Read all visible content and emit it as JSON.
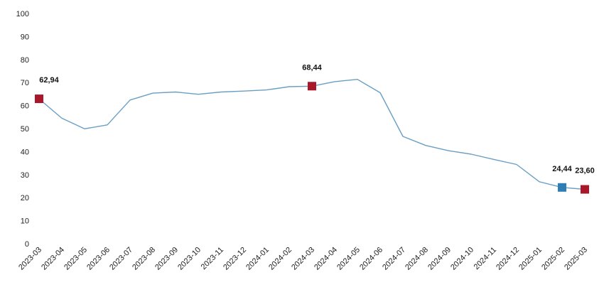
{
  "chart_data": {
    "type": "line",
    "title": "",
    "xlabel": "",
    "ylabel": "",
    "ylim": [
      0,
      100
    ],
    "yticks": [
      0,
      10,
      20,
      30,
      40,
      50,
      60,
      70,
      80,
      90,
      100
    ],
    "grid": false,
    "legend": "none",
    "categories": [
      "2023-03",
      "2023-04",
      "2023-05",
      "2023-06",
      "2023-07",
      "2023-08",
      "2023-09",
      "2023-10",
      "2023-11",
      "2023-12",
      "2024-01",
      "2024-02",
      "2024-03",
      "2024-04",
      "2024-05",
      "2024-06",
      "2024-07",
      "2024-08",
      "2024-09",
      "2024-10",
      "2024-11",
      "2024-12",
      "2025-01",
      "2025-02",
      "2025-03"
    ],
    "series": [
      {
        "color": "#6a9fc4",
        "values": [
          62.94,
          54.5,
          49.9,
          51.6,
          62.4,
          65.4,
          65.9,
          64.9,
          65.9,
          66.3,
          66.8,
          68.2,
          68.44,
          70.4,
          71.4,
          65.6,
          46.6,
          42.7,
          40.4,
          38.9,
          36.6,
          34.4,
          26.9,
          24.44,
          23.6
        ]
      }
    ],
    "markers": [
      {
        "index": 0,
        "label": "62,94",
        "color": "#a8182a"
      },
      {
        "index": 12,
        "label": "68,44",
        "color": "#a8182a"
      },
      {
        "index": 23,
        "label": "24,44",
        "color": "#2f7db5"
      },
      {
        "index": 24,
        "label": "23,60",
        "color": "#a8182a"
      }
    ]
  }
}
